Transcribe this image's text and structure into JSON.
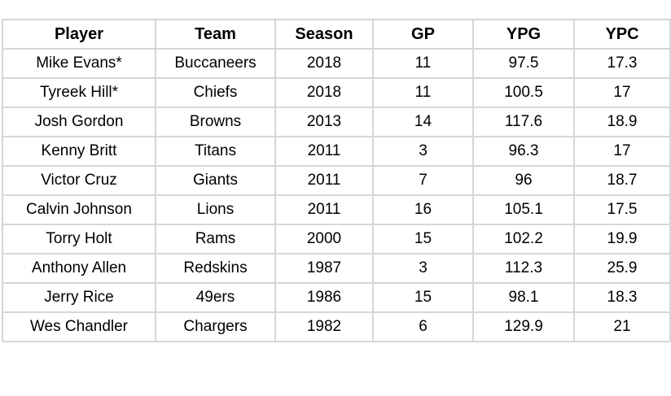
{
  "chart_data": {
    "type": "table",
    "columns": [
      "Player",
      "Team",
      "Season",
      "GP",
      "YPG",
      "YPC"
    ],
    "rows": [
      [
        "Mike Evans*",
        "Buccaneers",
        "2018",
        "11",
        "97.5",
        "17.3"
      ],
      [
        "Tyreek Hill*",
        "Chiefs",
        "2018",
        "11",
        "100.5",
        "17"
      ],
      [
        "Josh Gordon",
        "Browns",
        "2013",
        "14",
        "117.6",
        "18.9"
      ],
      [
        "Kenny Britt",
        "Titans",
        "2011",
        "3",
        "96.3",
        "17"
      ],
      [
        "Victor Cruz",
        "Giants",
        "2011",
        "7",
        "96",
        "18.7"
      ],
      [
        "Calvin Johnson",
        "Lions",
        "2011",
        "16",
        "105.1",
        "17.5"
      ],
      [
        "Torry Holt",
        "Rams",
        "2000",
        "15",
        "102.2",
        "19.9"
      ],
      [
        "Anthony Allen",
        "Redskins",
        "1987",
        "3",
        "112.3",
        "25.9"
      ],
      [
        "Jerry Rice",
        "49ers",
        "1986",
        "15",
        "98.1",
        "18.3"
      ],
      [
        "Wes Chandler",
        "Chargers",
        "1982",
        "6",
        "129.9",
        "21"
      ]
    ],
    "colors": {
      "text": "#000000",
      "border": "#d6d6d6",
      "cell_background": "#ffffff"
    }
  }
}
